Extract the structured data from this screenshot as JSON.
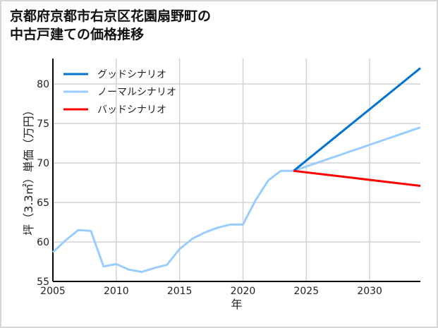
{
  "chart_data": {
    "type": "line",
    "title_lines": [
      "京都府京都市右京区花園扇野町の",
      "中古戸建ての価格推移"
    ],
    "xlabel": "年",
    "ylabel": "坪（3.3㎡）単価（万円）",
    "xlim": [
      2005,
      2034
    ],
    "ylim": [
      55,
      83
    ],
    "xticks": [
      2005,
      2010,
      2015,
      2020,
      2025,
      2030
    ],
    "yticks": [
      55,
      60,
      65,
      70,
      75,
      80
    ],
    "grid": true,
    "legend_position": "top-left",
    "series": [
      {
        "name": "グッドシナリオ",
        "color": "#0072cf",
        "x": [
          2024,
          2034
        ],
        "y": [
          69.0,
          82.0
        ]
      },
      {
        "name": "ノーマルシナリオ",
        "color": "#99ccff",
        "x": [
          2005,
          2006,
          2007,
          2008,
          2009,
          2010,
          2011,
          2012,
          2013,
          2014,
          2015,
          2016,
          2017,
          2018,
          2019,
          2020,
          2021,
          2022,
          2023,
          2024,
          2034
        ],
        "y": [
          58.7,
          60.2,
          61.5,
          61.4,
          56.9,
          57.2,
          56.5,
          56.2,
          56.7,
          57.1,
          59.1,
          60.4,
          61.2,
          61.8,
          62.2,
          62.2,
          65.3,
          67.8,
          69.0,
          69.0,
          74.5
        ]
      },
      {
        "name": "バッドシナリオ",
        "color": "#ff0000",
        "x": [
          2024,
          2034
        ],
        "y": [
          69.0,
          67.1
        ]
      }
    ]
  }
}
